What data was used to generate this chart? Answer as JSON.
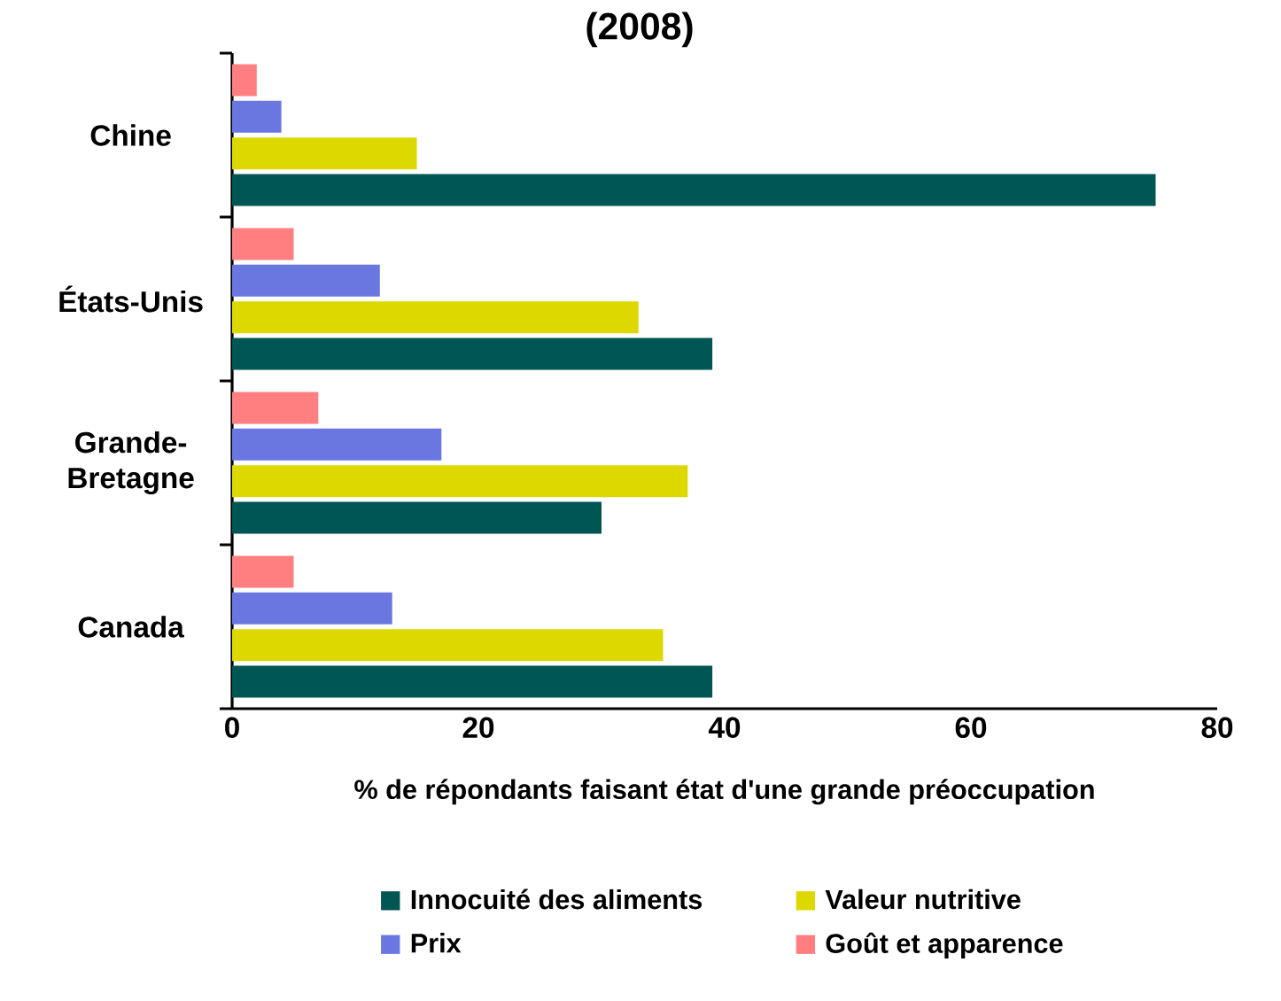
{
  "chart_data": {
    "type": "bar",
    "orientation": "horizontal",
    "title": "(2008)",
    "categories": [
      "Chine",
      "États-Unis",
      "Grande-Bretagne",
      "Canada"
    ],
    "series": [
      {
        "name": "Innocuité des aliments",
        "color": "#005653",
        "values": [
          75,
          39,
          30,
          39
        ]
      },
      {
        "name": "Valeur nutritive",
        "color": "#dcd800",
        "values": [
          15,
          33,
          37,
          35
        ]
      },
      {
        "name": "Prix",
        "color": "#6b77e0",
        "values": [
          4,
          12,
          17,
          13
        ]
      },
      {
        "name": "Goût et apparence",
        "color": "#ff7f80",
        "values": [
          2,
          5,
          7,
          5
        ]
      }
    ],
    "xlabel": "%  de répondants faisant état d'une grande préoccupation",
    "xlim": [
      0,
      80
    ],
    "xticks": [
      0,
      20,
      40,
      60,
      80
    ],
    "grid": false,
    "legend": "bottom"
  }
}
